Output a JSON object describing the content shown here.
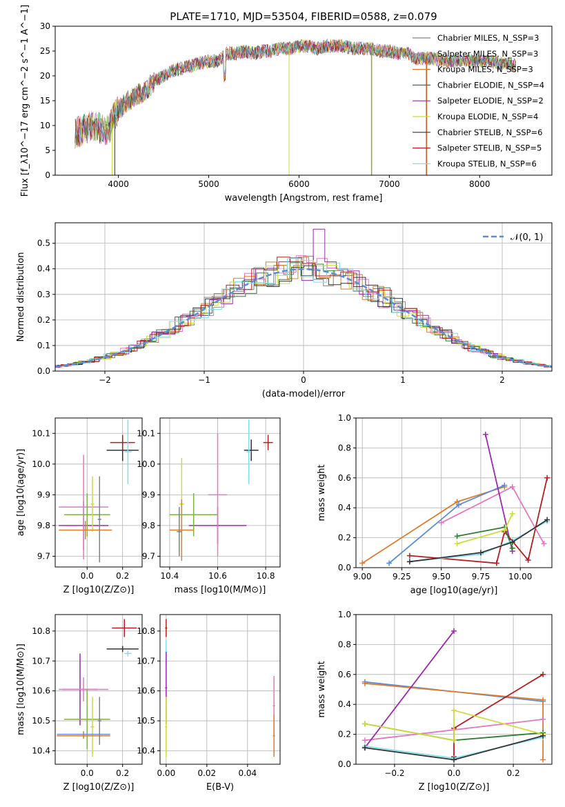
{
  "title": "PLATE=1710, MJD=53504, FIBERID=0588, z=0.079",
  "colors": {
    "chabrier_miles": "#808080",
    "salpeter_miles": "#e377c2",
    "kroupa_miles": "#e07b2b",
    "chabrier_elodie": "#2e7d32",
    "salpeter_elodie": "#9c27b0",
    "kroupa_elodie": "#cddc39",
    "chabrier_stelib": "#333333",
    "salpeter_stelib": "#b71c1c",
    "kroupa_stelib": "#80deea",
    "gauss": "#5b8dd6",
    "blue_fit": "#5b8dd6",
    "green_fit": "#7cb342"
  },
  "chart_data": [
    {
      "id": "spectrum",
      "type": "line",
      "xlabel": "wavelength [Angstrom, rest frame]",
      "ylabel": "Flux [f_λ10^−17 erg cm^−2 s^−1 A^−1]",
      "xlim": [
        3300,
        8800
      ],
      "ylim": [
        0,
        30
      ],
      "xticks": [
        4000,
        5000,
        6000,
        7000,
        8000
      ],
      "yticks": [
        0,
        5,
        10,
        15,
        20,
        25,
        30
      ],
      "grid": false,
      "legend_position": "top-right",
      "legend": [
        "Chabrier MILES, N_SSP=3",
        "Salpeter MILES, N_SSP=3",
        "Kroupa MILES, N_SSP=3",
        "Chabrier ELODIE, N_SSP=4",
        "Salpeter ELODIE, N_SSP=2",
        "Kroupa ELODIE, N_SSP=4",
        "Chabrier STELIB, N_SSP=6",
        "Salpeter STELIB, N_SSP=5",
        "Kroupa STELIB, N_SSP=6"
      ],
      "envelope": {
        "x": [
          3520,
          3600,
          3700,
          3800,
          3900,
          3950,
          4000,
          4100,
          4200,
          4300,
          4400,
          4500,
          4600,
          4700,
          4800,
          4900,
          5000,
          5100,
          5200,
          5300,
          5400,
          5500,
          5600,
          5700,
          5800,
          5900,
          6000,
          6100,
          6200,
          6300,
          6400,
          6500,
          6600,
          6700,
          6800,
          6900,
          7000,
          7100,
          7200,
          7300,
          7400,
          7500,
          7600,
          7700,
          7800,
          7900,
          8000,
          8100,
          8200,
          8300,
          8400
        ],
        "y": [
          8.5,
          9,
          10,
          9.5,
          9,
          12,
          13,
          15,
          16,
          17,
          19,
          20,
          21,
          21.5,
          22,
          22.5,
          23,
          23,
          24.5,
          24.5,
          25,
          24.5,
          25,
          25,
          25.5,
          25.5,
          26,
          26,
          25.5,
          26,
          26,
          26,
          25.5,
          25.5,
          25.5,
          25,
          25,
          24.5,
          24.5,
          23.5,
          23.5,
          23.5,
          23,
          23,
          23,
          23,
          23,
          23,
          22.5,
          22.5,
          22
        ]
      }
    },
    {
      "id": "residuals",
      "type": "line",
      "xlabel": "(data-model)/error",
      "ylabel": "Normed distribution",
      "xlim": [
        -2.5,
        2.5
      ],
      "ylim": [
        0,
        0.58
      ],
      "xticks": [
        -2,
        -1,
        0,
        1,
        2
      ],
      "yticks": [
        0.0,
        0.1,
        0.2,
        0.3,
        0.4,
        0.5
      ],
      "grid": true,
      "legend_position": "top-right",
      "legend": [
        "𝒩(0, 1)"
      ]
    },
    {
      "id": "age_vs_Z",
      "type": "scatter",
      "xlabel": "Z [log10(Z/Z⊙)]",
      "ylabel": "age  [log10(age/yr)]",
      "xlim": [
        -0.18,
        0.31
      ],
      "ylim": [
        9.665,
        10.15
      ],
      "xticks": [
        0.0,
        0.2
      ],
      "yticks": [
        9.7,
        9.8,
        9.9,
        10.0,
        10.1
      ],
      "grid": true,
      "points": [
        {
          "series": "chabrier_stelib",
          "x": 0.2,
          "y": 10.045,
          "xerr": 0.09,
          "yerr": 0.035
        },
        {
          "series": "salpeter_stelib",
          "x": 0.2,
          "y": 10.07,
          "xerr": 0.07,
          "yerr": 0.025
        },
        {
          "series": "kroupa_stelib",
          "x": 0.23,
          "y": 10.04,
          "xerr": 0.02,
          "yerr": 0.105
        },
        {
          "series": "salpeter_elodie",
          "x": -0.02,
          "y": 9.8,
          "xerr": 0.14,
          "yerr": 0.08
        },
        {
          "series": "salpeter_miles",
          "x": -0.02,
          "y": 9.86,
          "xerr": 0.14,
          "yerr": 0.17
        },
        {
          "series": "green_fit",
          "x": 0.0,
          "y": 9.835,
          "xerr": 0.13,
          "yerr": 0.07
        },
        {
          "series": "kroupa_elodie",
          "x": 0.03,
          "y": 9.87,
          "xerr": 0.01,
          "yerr": 0.09
        },
        {
          "series": "kroupa_miles",
          "x": -0.01,
          "y": 9.785,
          "xerr": 0.15,
          "yerr": 0.03
        },
        {
          "series": "chabrier_miles",
          "x": 0.07,
          "y": 9.82,
          "xerr": 0.01,
          "yerr": 0.14
        }
      ]
    },
    {
      "id": "age_vs_mass",
      "type": "scatter",
      "xlabel": "mass [log10(M/M⊙)]",
      "ylabel": "",
      "xlim": [
        10.36,
        10.86
      ],
      "ylim": [
        9.665,
        10.15
      ],
      "xticks": [
        10.4,
        10.6,
        10.8
      ],
      "yticks": [
        9.7,
        9.8,
        9.9,
        10.0,
        10.1
      ],
      "grid": true,
      "points": [
        {
          "series": "chabrier_stelib",
          "x": 10.74,
          "y": 10.045,
          "xerr": 0.03,
          "yerr": 0.035
        },
        {
          "series": "salpeter_stelib",
          "x": 10.81,
          "y": 10.07,
          "xerr": 0.02,
          "yerr": 0.025
        },
        {
          "series": "kroupa_stelib",
          "x": 10.73,
          "y": 10.04,
          "xerr": 0.01,
          "yerr": 0.105
        },
        {
          "series": "salpeter_elodie",
          "x": 10.6,
          "y": 9.8,
          "xerr": 0.12,
          "yerr": 0.06
        },
        {
          "series": "salpeter_miles",
          "x": 10.6,
          "y": 9.9,
          "xerr": 0.04,
          "yerr": 0.2
        },
        {
          "series": "green_fit",
          "x": 10.5,
          "y": 9.835,
          "xerr": 0.1,
          "yerr": 0.07
        },
        {
          "series": "kroupa_elodie",
          "x": 10.45,
          "y": 9.87,
          "xerr": 0.01,
          "yerr": 0.15
        },
        {
          "series": "kroupa_miles",
          "x": 10.45,
          "y": 9.785,
          "xerr": 0.05,
          "yerr": 0.1
        },
        {
          "series": "chabrier_miles",
          "x": 10.44,
          "y": 9.78,
          "xerr": 0.01,
          "yerr": 0.08
        }
      ]
    },
    {
      "id": "weight_vs_age",
      "type": "line",
      "xlabel": "age  [log10(age/yr)]",
      "ylabel": "mass weight",
      "xlim": [
        8.96,
        10.2
      ],
      "ylim": [
        0,
        1
      ],
      "xticks": [
        9.0,
        9.25,
        9.5,
        9.75,
        10.0
      ],
      "yticks": [
        0.0,
        0.2,
        0.4,
        0.6,
        0.8,
        1.0
      ],
      "grid": true,
      "series": [
        {
          "key": "kroupa_miles",
          "x": [
            9.0,
            9.6,
            9.9
          ],
          "y": [
            0.03,
            0.44,
            0.54
          ]
        },
        {
          "key": "blue_fit",
          "x": [
            9.17,
            9.61,
            9.9
          ],
          "y": [
            0.03,
            0.42,
            0.55
          ]
        },
        {
          "key": "salpeter_miles",
          "x": [
            9.5,
            9.95,
            10.15
          ],
          "y": [
            0.3,
            0.54,
            0.16
          ]
        },
        {
          "key": "salpeter_elodie",
          "x": [
            9.78,
            9.95
          ],
          "y": [
            0.89,
            0.11
          ]
        },
        {
          "key": "salpeter_stelib",
          "x": [
            9.3,
            9.85,
            9.9,
            10.05,
            10.17
          ],
          "y": [
            0.08,
            0.03,
            0.24,
            0.05,
            0.6
          ]
        },
        {
          "key": "chabrier_elodie",
          "x": [
            9.6,
            9.9,
            9.95
          ],
          "y": [
            0.21,
            0.27,
            0.13
          ]
        },
        {
          "key": "kroupa_elodie",
          "x": [
            9.6,
            9.9,
            9.95
          ],
          "y": [
            0.16,
            0.25,
            0.36
          ]
        },
        {
          "key": "kroupa_stelib",
          "x": [
            9.3,
            9.75,
            9.95,
            10.17
          ],
          "y": [
            0.04,
            0.09,
            0.18,
            0.31
          ]
        },
        {
          "key": "chabrier_stelib",
          "x": [
            9.3,
            9.75,
            9.95,
            10.17
          ],
          "y": [
            0.04,
            0.1,
            0.17,
            0.32
          ]
        }
      ]
    },
    {
      "id": "mass_vs_Z",
      "type": "scatter",
      "xlabel": "Z [log10(Z/Z⊙)]",
      "ylabel": "mass [log10(M/M⊙)]",
      "xlim": [
        -0.18,
        0.31
      ],
      "ylim": [
        10.355,
        10.855
      ],
      "xticks": [
        0.0,
        0.2
      ],
      "yticks": [
        10.4,
        10.5,
        10.6,
        10.7,
        10.8
      ],
      "grid": true,
      "points": [
        {
          "series": "salpeter_stelib",
          "x": 0.21,
          "y": 10.81,
          "xerr": 0.07,
          "yerr": 0.03
        },
        {
          "series": "chabrier_stelib",
          "x": 0.2,
          "y": 10.74,
          "xerr": 0.09,
          "yerr": 0.01
        },
        {
          "series": "kroupa_stelib",
          "x": 0.23,
          "y": 10.725,
          "xerr": 0.02,
          "yerr": 0.01
        },
        {
          "series": "salpeter_elodie",
          "x": -0.04,
          "y": 10.605,
          "xerr": 0.1,
          "yerr": 0.12
        },
        {
          "series": "salpeter_miles",
          "x": -0.02,
          "y": 10.605,
          "xerr": 0.14,
          "yerr": 0.04
        },
        {
          "series": "green_fit",
          "x": 0.0,
          "y": 10.505,
          "xerr": 0.13,
          "yerr": 0.1
        },
        {
          "series": "kroupa_elodie",
          "x": 0.03,
          "y": 10.48,
          "xerr": 0.01,
          "yerr": 0.1
        },
        {
          "series": "blue_fit",
          "x": -0.02,
          "y": 10.455,
          "xerr": 0.15,
          "yerr": 0.01
        },
        {
          "series": "kroupa_miles",
          "x": -0.02,
          "y": 10.45,
          "xerr": 0.15,
          "yerr": 0.01
        },
        {
          "series": "chabrier_miles",
          "x": 0.07,
          "y": 10.5,
          "xerr": 0.01,
          "yerr": 0.08
        }
      ]
    },
    {
      "id": "mass_vs_ebv",
      "type": "scatter",
      "xlabel": "E(B-V)",
      "ylabel": "",
      "xlim": [
        -0.003,
        0.056
      ],
      "ylim": [
        10.355,
        10.855
      ],
      "xticks": [
        0.0,
        0.02,
        0.04
      ],
      "yticks": [
        10.4,
        10.5,
        10.6,
        10.7,
        10.8
      ],
      "grid": true,
      "points": [
        {
          "series": "salpeter_stelib",
          "x": 0.0,
          "y": 10.81,
          "xerr": 0.0005,
          "yerr": 0.03
        },
        {
          "series": "kroupa_stelib",
          "x": 0.0,
          "y": 10.73,
          "xerr": 0.0005,
          "yerr": 0.04
        },
        {
          "series": "salpeter_elodie",
          "x": 0.0,
          "y": 10.61,
          "xerr": 0.0005,
          "yerr": 0.12
        },
        {
          "series": "kroupa_elodie",
          "x": 0.0,
          "y": 10.48,
          "xerr": 0.0005,
          "yerr": 0.1
        },
        {
          "series": "salpeter_miles",
          "x": 0.053,
          "y": 10.55,
          "xerr": 0.0005,
          "yerr": 0.1
        },
        {
          "series": "kroupa_miles",
          "x": 0.053,
          "y": 10.45,
          "xerr": 0.0005,
          "yerr": 0.07
        }
      ]
    },
    {
      "id": "weight_vs_Z",
      "type": "line",
      "xlabel": "Z [log10(Z/Z⊙)]",
      "ylabel": "mass weight",
      "xlim": [
        -0.33,
        0.33
      ],
      "ylim": [
        0,
        1
      ],
      "xticks": [
        -0.2,
        0.0,
        0.2
      ],
      "yticks": [
        0.0,
        0.2,
        0.4,
        0.6,
        0.8,
        1.0
      ],
      "grid": true,
      "series": [
        {
          "key": "blue_fit",
          "x": [
            -0.3,
            0.3
          ],
          "y": [
            0.55,
            0.42
          ]
        },
        {
          "key": "kroupa_miles",
          "x": [
            -0.3,
            0.3,
            0.3
          ],
          "y": [
            0.54,
            0.43,
            0.03
          ]
        },
        {
          "key": "salpeter_miles",
          "x": [
            -0.3,
            0.3
          ],
          "y": [
            0.16,
            0.3
          ]
        },
        {
          "key": "salpeter_elodie",
          "x": [
            -0.3,
            0.0
          ],
          "y": [
            0.11,
            0.89
          ]
        },
        {
          "key": "salpeter_stelib",
          "x": [
            0.0,
            0.0,
            0.3
          ],
          "y": [
            0.05,
            0.24,
            0.6
          ]
        },
        {
          "key": "chabrier_elodie",
          "x": [
            -0.3,
            0.0,
            0.3
          ],
          "y": [
            0.27,
            0.16,
            0.21
          ]
        },
        {
          "key": "kroupa_elodie",
          "x": [
            -0.3,
            0.0,
            0.0,
            0.3
          ],
          "y": [
            0.27,
            0.16,
            0.36,
            0.2
          ]
        },
        {
          "key": "kroupa_stelib",
          "x": [
            -0.3,
            0.0,
            0.3
          ],
          "y": [
            0.12,
            0.04,
            0.18
          ]
        },
        {
          "key": "chabrier_stelib",
          "x": [
            -0.3,
            0.0,
            0.3
          ],
          "y": [
            0.11,
            0.03,
            0.19
          ]
        }
      ]
    }
  ]
}
